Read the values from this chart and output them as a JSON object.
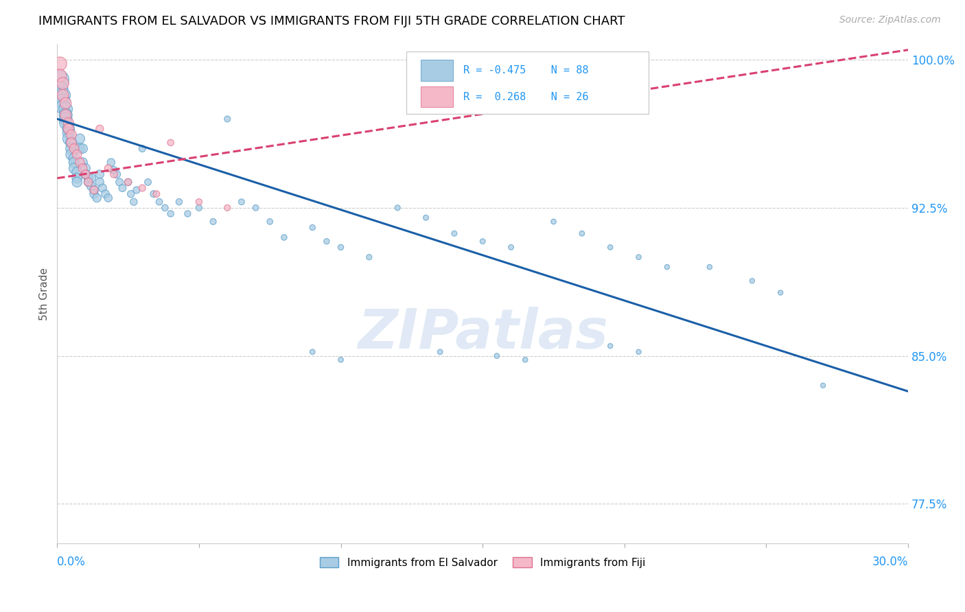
{
  "title": "IMMIGRANTS FROM EL SALVADOR VS IMMIGRANTS FROM FIJI 5TH GRADE CORRELATION CHART",
  "source": "Source: ZipAtlas.com",
  "ylabel": "5th Grade",
  "xmin": 0.0,
  "xmax": 0.3,
  "ymin": 0.755,
  "ymax": 1.008,
  "blue_R": "-0.475",
  "blue_N": "88",
  "pink_R": "0.268",
  "pink_N": "26",
  "blue_color": "#a8cce4",
  "blue_edge": "#5b9ec9",
  "pink_color": "#f4b8c8",
  "pink_edge": "#e07090",
  "trend_blue": "#1a5fa8",
  "trend_pink": "#d94070",
  "watermark_color": "#c8d8ee",
  "legend_label_blue": "Immigrants from El Salvador",
  "legend_label_pink": "Immigrants from Fiji",
  "blue_trend_x0": 0.0,
  "blue_trend_y0": 0.97,
  "blue_trend_x1": 0.3,
  "blue_trend_y1": 0.832,
  "pink_trend_x0": 0.0,
  "pink_trend_y0": 0.94,
  "pink_trend_x1": 0.3,
  "pink_trend_y1": 1.005,
  "ytick_vals": [
    0.775,
    0.85,
    0.925,
    1.0
  ],
  "ytick_labels": [
    "77.5%",
    "85.0%",
    "92.5%",
    "100.0%"
  ],
  "blue_scatter_x": [
    0.001,
    0.001,
    0.002,
    0.002,
    0.002,
    0.003,
    0.003,
    0.003,
    0.003,
    0.004,
    0.004,
    0.004,
    0.005,
    0.005,
    0.005,
    0.006,
    0.006,
    0.006,
    0.007,
    0.007,
    0.007,
    0.008,
    0.008,
    0.009,
    0.009,
    0.01,
    0.01,
    0.011,
    0.011,
    0.012,
    0.012,
    0.013,
    0.013,
    0.014,
    0.015,
    0.015,
    0.016,
    0.017,
    0.018,
    0.019,
    0.02,
    0.021,
    0.022,
    0.023,
    0.025,
    0.026,
    0.027,
    0.028,
    0.03,
    0.032,
    0.034,
    0.036,
    0.038,
    0.04,
    0.043,
    0.046,
    0.05,
    0.055,
    0.06,
    0.065,
    0.07,
    0.075,
    0.08,
    0.09,
    0.095,
    0.1,
    0.11,
    0.12,
    0.13,
    0.14,
    0.15,
    0.16,
    0.175,
    0.185,
    0.195,
    0.205,
    0.215,
    0.23,
    0.245,
    0.255,
    0.195,
    0.205,
    0.09,
    0.1,
    0.155,
    0.165,
    0.135,
    0.27
  ],
  "blue_scatter_y": [
    0.99,
    0.985,
    0.982,
    0.979,
    0.976,
    0.975,
    0.972,
    0.97,
    0.968,
    0.965,
    0.963,
    0.96,
    0.958,
    0.955,
    0.952,
    0.95,
    0.948,
    0.945,
    0.943,
    0.94,
    0.938,
    0.96,
    0.955,
    0.955,
    0.948,
    0.945,
    0.942,
    0.94,
    0.938,
    0.94,
    0.936,
    0.934,
    0.932,
    0.93,
    0.942,
    0.938,
    0.935,
    0.932,
    0.93,
    0.948,
    0.944,
    0.942,
    0.938,
    0.935,
    0.938,
    0.932,
    0.928,
    0.934,
    0.955,
    0.938,
    0.932,
    0.928,
    0.925,
    0.922,
    0.928,
    0.922,
    0.925,
    0.918,
    0.97,
    0.928,
    0.925,
    0.918,
    0.91,
    0.915,
    0.908,
    0.905,
    0.9,
    0.925,
    0.92,
    0.912,
    0.908,
    0.905,
    0.918,
    0.912,
    0.905,
    0.9,
    0.895,
    0.895,
    0.888,
    0.882,
    0.855,
    0.852,
    0.852,
    0.848,
    0.85,
    0.848,
    0.852,
    0.835
  ],
  "pink_scatter_x": [
    0.001,
    0.001,
    0.002,
    0.002,
    0.003,
    0.003,
    0.004,
    0.004,
    0.005,
    0.005,
    0.006,
    0.007,
    0.008,
    0.009,
    0.01,
    0.011,
    0.013,
    0.015,
    0.018,
    0.02,
    0.025,
    0.03,
    0.035,
    0.04,
    0.05,
    0.06
  ],
  "pink_scatter_y": [
    0.998,
    0.992,
    0.988,
    0.982,
    0.978,
    0.972,
    0.968,
    0.965,
    0.962,
    0.958,
    0.955,
    0.952,
    0.948,
    0.945,
    0.942,
    0.938,
    0.934,
    0.965,
    0.945,
    0.942,
    0.938,
    0.935,
    0.932,
    0.958,
    0.928,
    0.925
  ],
  "blue_sizes": [
    350,
    280,
    250,
    230,
    210,
    200,
    190,
    180,
    170,
    160,
    155,
    150,
    145,
    140,
    135,
    130,
    125,
    120,
    115,
    110,
    108,
    105,
    102,
    100,
    98,
    96,
    94,
    92,
    90,
    88,
    86,
    84,
    82,
    80,
    78,
    76,
    74,
    72,
    70,
    68,
    66,
    64,
    62,
    60,
    58,
    56,
    55,
    54,
    52,
    50,
    49,
    48,
    47,
    46,
    45,
    44,
    43,
    42,
    41,
    40,
    39,
    38,
    37,
    36,
    35,
    35,
    34,
    33,
    32,
    32,
    31,
    31,
    30,
    30,
    29,
    29,
    28,
    28,
    27,
    27,
    27,
    27,
    30,
    30,
    29,
    29,
    30,
    26
  ],
  "pink_sizes": [
    200,
    180,
    160,
    150,
    140,
    130,
    120,
    115,
    110,
    105,
    100,
    95,
    90,
    85,
    80,
    75,
    70,
    65,
    60,
    58,
    54,
    50,
    48,
    46,
    44,
    42
  ]
}
